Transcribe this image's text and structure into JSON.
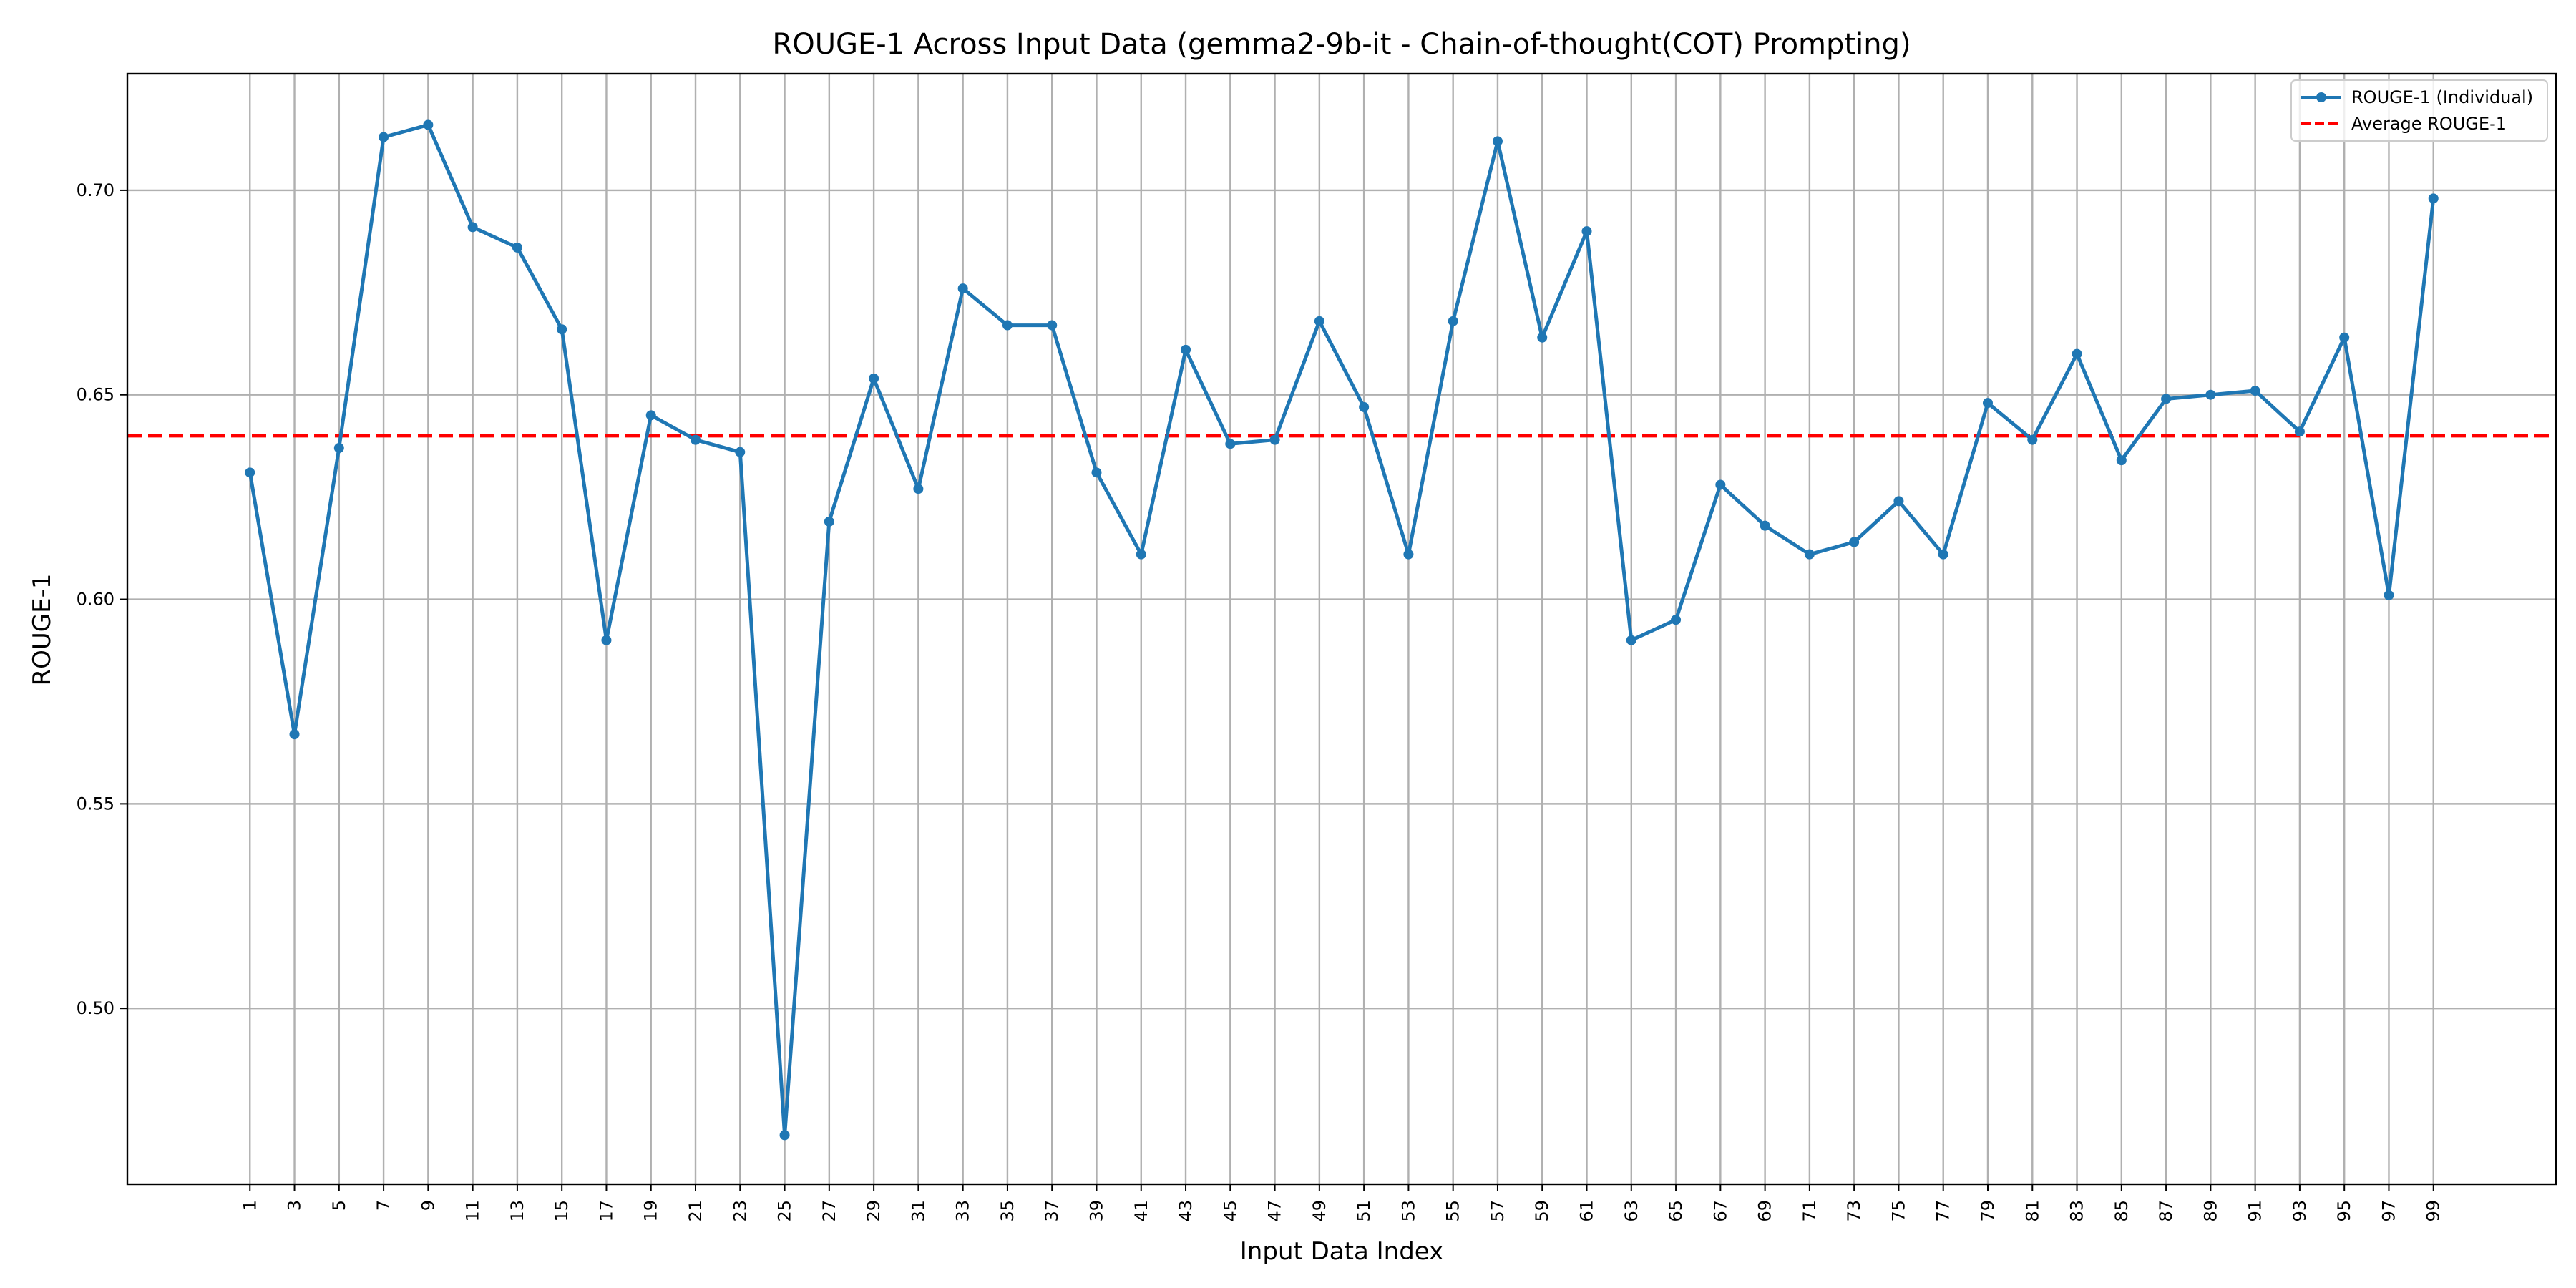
{
  "chart_data": {
    "type": "line",
    "title": "ROUGE-1 Across Input Data (gemma2-9b-it - Chain-of-thought(COT) Prompting)",
    "xlabel": "Input Data Index",
    "ylabel": "ROUGE-1",
    "x": [
      1,
      3,
      5,
      7,
      9,
      11,
      13,
      15,
      17,
      19,
      21,
      23,
      25,
      27,
      29,
      31,
      33,
      35,
      37,
      39,
      41,
      43,
      45,
      47,
      49,
      51,
      53,
      55,
      57,
      59,
      61,
      63,
      65,
      67,
      69,
      71,
      73,
      75,
      77,
      79,
      81,
      83,
      85,
      87,
      89,
      91,
      93,
      95,
      97,
      99
    ],
    "xticks": [
      "1",
      "3",
      "5",
      "7",
      "9",
      "11",
      "13",
      "15",
      "17",
      "19",
      "21",
      "23",
      "25",
      "27",
      "29",
      "31",
      "33",
      "35",
      "37",
      "39",
      "41",
      "43",
      "45",
      "47",
      "49",
      "51",
      "53",
      "55",
      "57",
      "59",
      "61",
      "63",
      "65",
      "67",
      "69",
      "71",
      "73",
      "75",
      "77",
      "79",
      "81",
      "83",
      "85",
      "87",
      "89",
      "91",
      "93",
      "95",
      "97",
      "99"
    ],
    "xlim": [
      -4.5,
      104.5
    ],
    "ylim": [
      0.457,
      0.7285
    ],
    "yticks": [
      "0.50",
      "0.55",
      "0.60",
      "0.65",
      "0.70"
    ],
    "ytick_values": [
      0.5,
      0.55,
      0.6,
      0.65,
      0.7
    ],
    "grid": true,
    "legend_position": "top-right",
    "series": [
      {
        "name": "ROUGE-1 (Individual)",
        "color": "#1f77b4",
        "style": "solid-with-markers",
        "values": [
          0.631,
          0.567,
          0.637,
          0.713,
          0.716,
          0.691,
          0.686,
          0.666,
          0.59,
          0.645,
          0.639,
          0.636,
          0.469,
          0.619,
          0.654,
          0.627,
          0.676,
          0.667,
          0.667,
          0.631,
          0.611,
          0.661,
          0.638,
          0.639,
          0.668,
          0.647,
          0.611,
          0.668,
          0.712,
          0.664,
          0.69,
          0.59,
          0.595,
          0.628,
          0.618,
          0.611,
          0.614,
          0.624,
          0.611,
          0.648,
          0.639,
          0.66,
          0.634,
          0.649,
          0.65,
          0.651,
          0.641,
          0.664,
          0.601,
          0.698
        ]
      },
      {
        "name": "Average ROUGE-1",
        "color": "#ff0000",
        "style": "dashed",
        "value": 0.64
      }
    ]
  }
}
